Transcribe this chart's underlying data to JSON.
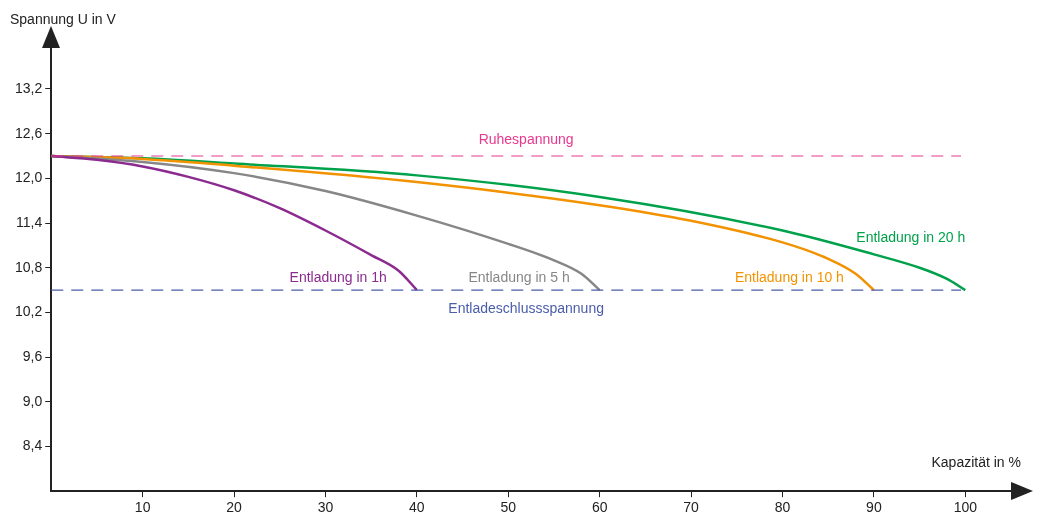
{
  "chart_data": {
    "type": "line",
    "xlabel": "Kapazität in %",
    "ylabel": "Spannung U in V",
    "xlim": [
      0,
      105
    ],
    "ylim": [
      7.8,
      13.75
    ],
    "xticks": [
      10,
      20,
      30,
      40,
      50,
      60,
      70,
      80,
      90,
      100
    ],
    "yticks": [
      {
        "value": 8.4,
        "label": "8,4"
      },
      {
        "value": 9.0,
        "label": "9,0"
      },
      {
        "value": 9.6,
        "label": "9,6"
      },
      {
        "value": 10.2,
        "label": "10,2"
      },
      {
        "value": 10.8,
        "label": "10,8"
      },
      {
        "value": 11.4,
        "label": "11,4"
      },
      {
        "value": 12.0,
        "label": "12,0"
      },
      {
        "value": 12.6,
        "label": "12,6"
      },
      {
        "value": 13.2,
        "label": "13,2"
      }
    ],
    "grid": false,
    "legend": false,
    "marker": "none",
    "line_style": "solid",
    "series": [
      {
        "name": "Entladung in 1h",
        "color": "#8b2a8f",
        "x": [
          0,
          5,
          10,
          15,
          20,
          25,
          30,
          35,
          38,
          40
        ],
        "values": [
          12.3,
          12.25,
          12.16,
          12.02,
          11.84,
          11.6,
          11.3,
          10.97,
          10.76,
          10.5
        ]
      },
      {
        "name": "Entladung in 5 h",
        "color": "#878787",
        "x": [
          0,
          10,
          20,
          30,
          40,
          50,
          55,
          58,
          60
        ],
        "values": [
          12.3,
          12.22,
          12.07,
          11.83,
          11.5,
          11.12,
          10.9,
          10.72,
          10.5
        ]
      },
      {
        "name": "Entladung in 10 h",
        "color": "#f39200",
        "x": [
          0,
          10,
          20,
          40,
          60,
          70,
          80,
          85,
          88,
          90
        ],
        "values": [
          12.3,
          12.26,
          12.17,
          11.95,
          11.64,
          11.43,
          11.14,
          10.92,
          10.72,
          10.5
        ]
      },
      {
        "name": "Entladung in 20 h",
        "color": "#00a14b",
        "x": [
          0,
          10,
          20,
          40,
          60,
          80,
          90,
          95,
          98,
          100
        ],
        "values": [
          12.3,
          12.27,
          12.2,
          12.04,
          11.75,
          11.3,
          10.98,
          10.8,
          10.65,
          10.5
        ]
      }
    ],
    "ref_lines": [
      {
        "axis": "y",
        "value": 12.3,
        "label": "Ruhespannung",
        "color": "#e6388f",
        "line_style": "dashed"
      },
      {
        "axis": "y",
        "value": 10.5,
        "label": "Entladeschlussspannung",
        "color": "#4a5daa",
        "line_style": "dashed"
      }
    ]
  }
}
